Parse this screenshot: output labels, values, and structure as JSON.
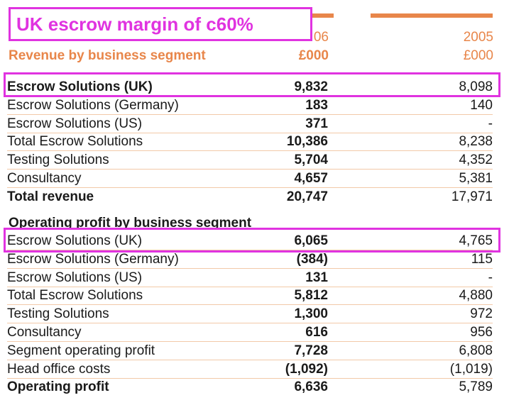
{
  "callout": "UK escrow margin of c60%",
  "header": {
    "segment_title": "Revenue by business segment",
    "year_2006_partial": "06",
    "year_2005": "2005",
    "unit_2006": "£000",
    "unit_2005": "£000"
  },
  "revenue_rows": [
    {
      "label": "Escrow Solutions (UK)",
      "v2006": "9,832",
      "v2005": "8,098",
      "bold": true
    },
    {
      "label": "Escrow Solutions (Germany)",
      "v2006": "183",
      "v2005": "140",
      "bold": false
    },
    {
      "label": "Escrow Solutions (US)",
      "v2006": "371",
      "v2005": "-",
      "bold": false
    },
    {
      "label": "Total Escrow Solutions",
      "v2006": "10,386",
      "v2005": "8,238",
      "bold": false
    },
    {
      "label": "Testing Solutions",
      "v2006": "5,704",
      "v2005": "4,352",
      "bold": false
    },
    {
      "label": "Consultancy",
      "v2006": "4,657",
      "v2005": "5,381",
      "bold": false
    },
    {
      "label": "Total revenue",
      "v2006": "20,747",
      "v2005": "17,971",
      "bold": true
    }
  ],
  "profit_title": "Operating profit by business segment",
  "profit_rows": [
    {
      "label": "Escrow Solutions (UK)",
      "v2006": "6,065",
      "v2005": "4,765",
      "bold": false
    },
    {
      "label": "Escrow Solutions (Germany)",
      "v2006": "(384)",
      "v2005": "115",
      "bold": false
    },
    {
      "label": "Escrow Solutions (US)",
      "v2006": "131",
      "v2005": "-",
      "bold": false
    },
    {
      "label": "Total Escrow Solutions",
      "v2006": "5,812",
      "v2005": "4,880",
      "bold": false
    },
    {
      "label": "Testing Solutions",
      "v2006": "1,300",
      "v2005": "972",
      "bold": false
    },
    {
      "label": "Consultancy",
      "v2006": "616",
      "v2005": "956",
      "bold": false
    },
    {
      "label": "Segment operating profit",
      "v2006": "7,728",
      "v2005": "6,808",
      "bold": false
    },
    {
      "label": "Head office costs",
      "v2006": "(1,092)",
      "v2005": "(1,019)",
      "bold": false
    },
    {
      "label": "Operating profit",
      "v2006": "6,636",
      "v2005": "5,789",
      "bold": true
    }
  ]
}
